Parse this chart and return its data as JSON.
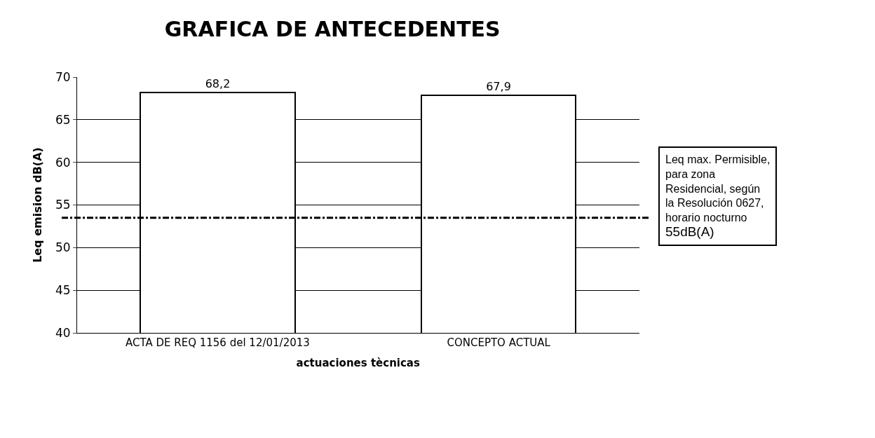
{
  "chart_data": {
    "type": "bar",
    "title": "GRAFICA DE ANTECEDENTES",
    "xlabel": "actuaciones tècnicas",
    "ylabel": "Leq emision dB(A)",
    "categories": [
      "ACTA DE REQ 1156 del 12/01/2013",
      "CONCEPTO ACTUAL"
    ],
    "values": [
      68.2,
      67.9
    ],
    "value_labels": [
      "68,2",
      "67,9"
    ],
    "color": "#ffffff",
    "ylim": [
      40,
      70
    ],
    "yticks": [
      40,
      45,
      50,
      55,
      60,
      65,
      70
    ],
    "grid": "y",
    "ref_lines": [
      {
        "axis": "y",
        "value": 53.5,
        "label": "Leq max. Permisible,\npara zona\nResidencial, según\nla Resolución 0627,\nhorario nocturno\n55dB(A)",
        "color": "#000000",
        "line_style": "dashdot"
      }
    ]
  }
}
